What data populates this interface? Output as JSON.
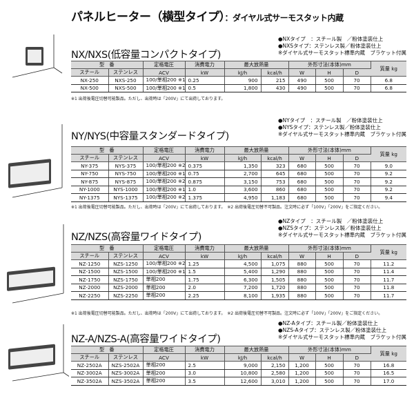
{
  "title": {
    "main": "パネルヒーター（横型タイプ）",
    "sub": "：ダイヤル式サーモスタット内蔵"
  },
  "header_labels": {
    "model": "型　番",
    "rated_voltage": "定格電圧",
    "power": "消費電力",
    "max_heat": "最大放熱量",
    "dimensions": "外形寸法(本体)mm",
    "mass": "質量 kg",
    "steel": "スチール",
    "stainless": "ステンレス",
    "acv": "ACV",
    "kw": "kW",
    "kjh": "kJ/h",
    "kcalh": "kcal/h",
    "w": "W",
    "h": "H",
    "d": "D"
  },
  "footnote": "※1 出荷後電圧切替可能製品。ただし、出荷時は「200V」にて出荷しております。　※2 出荷後電圧切替不可製品。注文時に必ず「100V」「200V」をご指定ください。",
  "footnote1": "※1 出荷後電圧切替可能製品。ただし、出荷時は「200V」にて出荷しております。",
  "sections": [
    {
      "heading": "NX/NXS(低容量コンパクトタイプ)",
      "notes": [
        "●NXタイプ　：スチール製　／粉体塗装仕上",
        "●NXSタイプ：ステンレス製／粉体塗装仕上",
        "※ダイヤル式サーモスタット標準内蔵　ブラケット付属"
      ],
      "rows": [
        [
          "NX-250",
          "NXS-250",
          "100/単相200 ※1",
          "0.25",
          "900",
          "215",
          "490",
          "500",
          "70",
          "6.8"
        ],
        [
          "NX-500",
          "NXS-500",
          "100/単相200 ※1",
          "0.5",
          "1,800",
          "430",
          "490",
          "500",
          "70",
          "6.8"
        ]
      ]
    },
    {
      "heading": "NY/NYS(中容量スタンダードタイプ)",
      "notes": [
        "●NYタイプ　：スチール製　／粉体塗装仕上",
        "●NYSタイプ：ステンレス製／粉体塗装仕上",
        "※ダイヤル式サーモスタット標準内蔵　ブラケット付属"
      ],
      "rows": [
        [
          "NY-375",
          "NYS-375",
          "100/単相200 ※2",
          "0.375",
          "1,350",
          "323",
          "680",
          "500",
          "70",
          "9.0"
        ],
        [
          "NY-750",
          "NYS-750",
          "100/単相200 ※1",
          "0.75",
          "2,700",
          "645",
          "680",
          "500",
          "70",
          "9.2"
        ],
        [
          "NY-875",
          "NYS-875",
          "100/単相200 ※2",
          "0.875",
          "3,150",
          "753",
          "680",
          "500",
          "70",
          "9.2"
        ],
        [
          "NY-1000",
          "NYS-1000",
          "100/単相200 ※1",
          "1.0",
          "3,600",
          "860",
          "680",
          "500",
          "70",
          "9.2"
        ],
        [
          "NY-1375",
          "NYS-1375",
          "100/単相200 ※2",
          "1.375",
          "4,950",
          "1,183",
          "680",
          "500",
          "70",
          "9.4"
        ]
      ]
    },
    {
      "heading": "NZ/NZS(高容量ワイドタイプ)",
      "notes": [
        "●NZタイプ　：スチール製　／粉体塗装仕上",
        "●NZSタイプ：ステンレス製／粉体塗装仕上",
        "※ダイヤル式サーモスタット標準内蔵　ブラケット付属"
      ],
      "rows": [
        [
          "NZ-1250",
          "NZS-1250",
          "100/単相200 ※2",
          "1.25",
          "4,500",
          "1,075",
          "880",
          "500",
          "70",
          "11.2"
        ],
        [
          "NZ-1500",
          "NZS-1500",
          "100/単相200 ※1",
          "1.5",
          "5,400",
          "1,290",
          "880",
          "500",
          "70",
          "11.4"
        ],
        [
          "NZ-1750",
          "NZS-1750",
          "単相200",
          "1.75",
          "6,300",
          "1,505",
          "880",
          "500",
          "70",
          "11.7"
        ],
        [
          "NZ-2000",
          "NZS-2000",
          "単相200",
          "2.0",
          "7,200",
          "1,720",
          "880",
          "500",
          "70",
          "11.8"
        ],
        [
          "NZ-2250",
          "NZS-2250",
          "単相200",
          "2.25",
          "8,100",
          "1,935",
          "880",
          "500",
          "70",
          "11.7"
        ]
      ]
    },
    {
      "heading": "NZ-A/NZS-A(高容量ワイドタイプ)",
      "notes": [
        "●NZ-Aタイプ：スチール製／粉体塗装仕上",
        "●NZS-Aタイプ：ステンレス製／粉体塗装仕上",
        "※ダイヤル式サーモスタット標準内蔵　ブラケット付属"
      ],
      "rows": [
        [
          "NZ-2502A",
          "NZS-2502A",
          "単相200",
          "2.5",
          "9,000",
          "2,150",
          "1,200",
          "500",
          "70",
          "16.8"
        ],
        [
          "NZ-3002A",
          "NZS-3002A",
          "単相200",
          "3.0",
          "10,800",
          "2,580",
          "1,200",
          "500",
          "70",
          "16.5"
        ],
        [
          "NZ-3502A",
          "NZS-3502A",
          "単相200",
          "3.5",
          "12,600",
          "3,010",
          "1,200",
          "500",
          "70",
          "17.0"
        ]
      ]
    }
  ]
}
